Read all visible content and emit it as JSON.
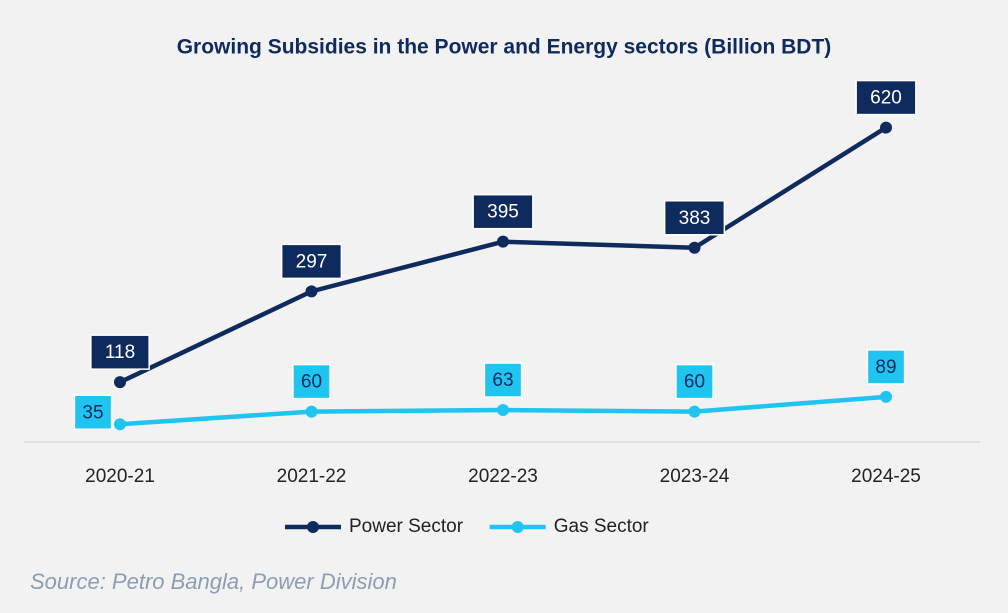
{
  "chart_data": {
    "type": "line",
    "title": "Growing Subsidies in the Power and Energy sectors (Billion BDT)",
    "categories": [
      "2020-21",
      "2021-22",
      "2022-23",
      "2023-24",
      "2024-25"
    ],
    "series": [
      {
        "name": "Power Sector",
        "color": "#0f2a5c",
        "values": [
          118,
          297,
          395,
          383,
          620
        ]
      },
      {
        "name": "Gas Sector",
        "color": "#1fc4f0",
        "values": [
          35,
          60,
          63,
          60,
          89
        ]
      }
    ],
    "ylim": [
      0,
      700
    ],
    "source": "Source: Petro Bangla, Power Division"
  }
}
